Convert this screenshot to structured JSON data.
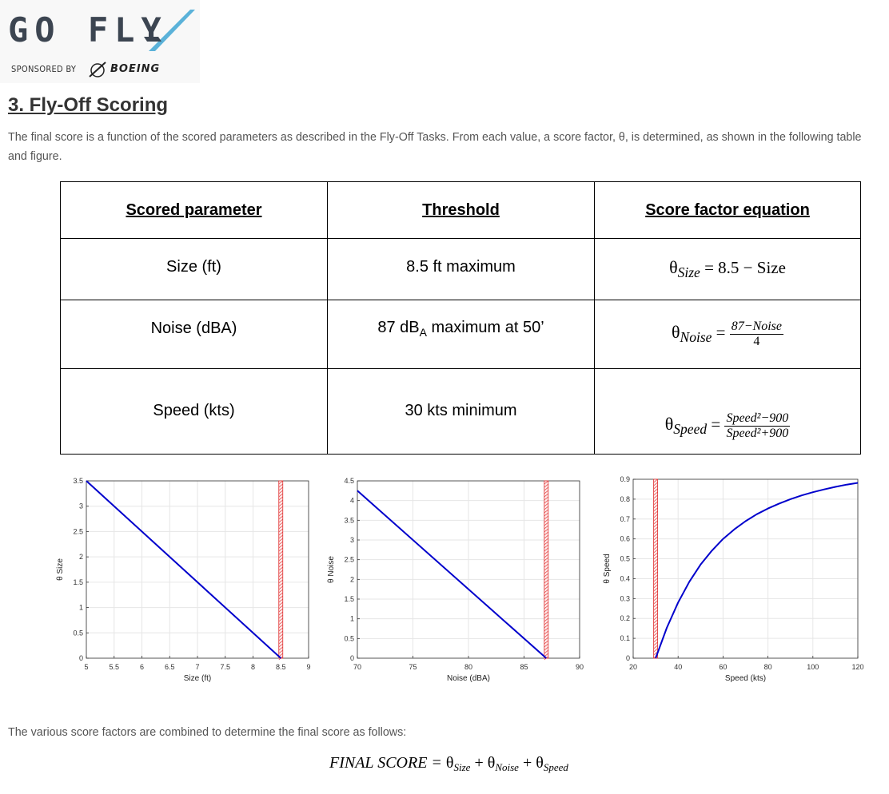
{
  "header": {
    "logo_text": "GO FLY",
    "sponsor_label": "SPONSORED BY",
    "sponsor_name": "BOEING"
  },
  "section": {
    "title": "3. Fly-Off Scoring",
    "intro": "The final score is a function of the scored parameters as described in the Fly-Off Tasks. From each value, a score factor, θ, is determined, as shown in the following table and figure."
  },
  "table": {
    "headers": [
      "Scored parameter",
      "Threshold",
      "Score factor equation"
    ],
    "rows": [
      {
        "parameter": "Size (ft)",
        "threshold": "8.5 ft maximum"
      },
      {
        "parameter": "Noise (dBA)",
        "threshold_prefix": "87 dB",
        "threshold_sub": "A",
        "threshold_suffix": " maximum at 50’"
      },
      {
        "parameter": "Speed (kts)",
        "threshold": "30 kts minimum"
      }
    ],
    "equations": {
      "size": {
        "symbol": "θ",
        "sub": "Size",
        "rhs": "= 8.5 − Size"
      },
      "noise": {
        "symbol": "θ",
        "sub": "Noise",
        "eq": "=",
        "num": "87−Noise",
        "den": "4"
      },
      "speed": {
        "symbol": "θ",
        "sub": "Speed",
        "eq": "=",
        "num": "Speed²−900",
        "den": "Speed²+900"
      }
    }
  },
  "chart_data": [
    {
      "type": "line",
      "xlabel": "Size (ft)",
      "ylabel": "θ Size",
      "xlim": [
        5,
        9
      ],
      "ylim": [
        0,
        3.5
      ],
      "xticks": [
        "5",
        "5.5",
        "6",
        "6.5",
        "7",
        "7.5",
        "8",
        "8.5",
        "9"
      ],
      "yticks": [
        "0",
        "0.5",
        "1",
        "1.5",
        "2",
        "2.5",
        "3",
        "3.5"
      ],
      "x": [
        5,
        8.5
      ],
      "y": [
        3.5,
        0
      ],
      "threshold_x": 8.5,
      "grid": true,
      "line_color": "#0000cc",
      "threshold_color": "#e03030"
    },
    {
      "type": "line",
      "xlabel": "Noise (dBA)",
      "ylabel": "θ Noise",
      "xlim": [
        70,
        90
      ],
      "ylim": [
        0,
        4.5
      ],
      "xticks": [
        "70",
        "75",
        "80",
        "85",
        "90"
      ],
      "yticks": [
        "0",
        "0.5",
        "1",
        "1.5",
        "2",
        "2.5",
        "3",
        "3.5",
        "4",
        "4.5"
      ],
      "x": [
        70,
        87
      ],
      "y": [
        4.25,
        0
      ],
      "threshold_x": 87,
      "grid": true,
      "line_color": "#0000cc",
      "threshold_color": "#e03030"
    },
    {
      "type": "line",
      "xlabel": "Speed (kts)",
      "ylabel": "θ Speed",
      "xlim": [
        20,
        120
      ],
      "ylim": [
        0,
        0.9
      ],
      "xticks": [
        "20",
        "40",
        "60",
        "80",
        "100",
        "120"
      ],
      "yticks": [
        "0",
        "0.1",
        "0.2",
        "0.3",
        "0.4",
        "0.5",
        "0.6",
        "0.7",
        "0.8",
        "0.9"
      ],
      "x": [
        30,
        35,
        40,
        45,
        50,
        55,
        60,
        65,
        70,
        75,
        80,
        85,
        90,
        95,
        100,
        105,
        110,
        115,
        120
      ],
      "y": [
        0,
        0.153,
        0.28,
        0.385,
        0.471,
        0.541,
        0.6,
        0.648,
        0.689,
        0.724,
        0.753,
        0.778,
        0.8,
        0.819,
        0.835,
        0.849,
        0.862,
        0.873,
        0.882
      ],
      "threshold_x": 30,
      "grid": true,
      "line_color": "#0000cc",
      "threshold_color": "#e03030"
    }
  ],
  "closing": {
    "text": "The various score factors are combined to determine the final score as follows:",
    "final_lhs": "FINAL SCORE = ",
    "theta": "θ",
    "plus": " + ",
    "terms": [
      "Size",
      "Noise",
      "Speed"
    ]
  }
}
